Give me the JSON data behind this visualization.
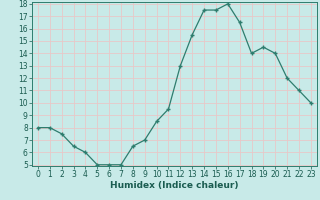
{
  "x": [
    0,
    1,
    2,
    3,
    4,
    5,
    6,
    7,
    8,
    9,
    10,
    11,
    12,
    13,
    14,
    15,
    16,
    17,
    18,
    19,
    20,
    21,
    22,
    23
  ],
  "y": [
    8,
    8,
    7.5,
    6.5,
    6,
    5,
    5,
    5,
    6.5,
    7,
    8.5,
    9.5,
    13,
    15.5,
    17.5,
    17.5,
    18,
    16.5,
    14,
    14.5,
    14,
    12,
    11,
    10
  ],
  "xlabel": "Humidex (Indice chaleur)",
  "ylim": [
    5,
    18
  ],
  "xlim": [
    -0.5,
    23.5
  ],
  "yticks": [
    5,
    6,
    7,
    8,
    9,
    10,
    11,
    12,
    13,
    14,
    15,
    16,
    17,
    18
  ],
  "xticks": [
    0,
    1,
    2,
    3,
    4,
    5,
    6,
    7,
    8,
    9,
    10,
    11,
    12,
    13,
    14,
    15,
    16,
    17,
    18,
    19,
    20,
    21,
    22,
    23
  ],
  "line_color": "#2e7d6e",
  "bg_color": "#c8eae8",
  "grid_color": "#e8c8c8",
  "axis_bg": "#c8eae8",
  "font_color": "#1a5c50",
  "tick_fontsize": 5.5,
  "xlabel_fontsize": 6.5
}
